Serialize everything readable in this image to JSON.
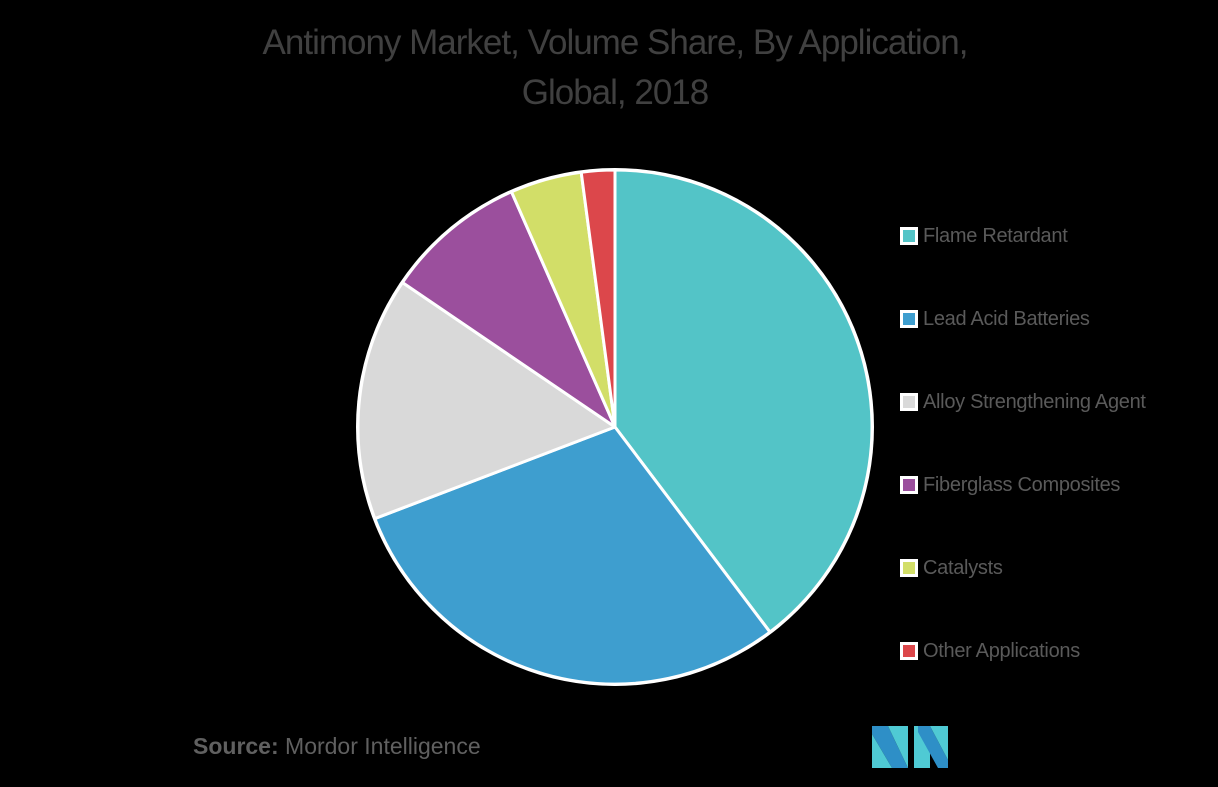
{
  "title": {
    "line1": "Antimony Market, Volume Share, By Application,",
    "line2": "Global, 2018"
  },
  "source": {
    "label": "Source:",
    "value": "Mordor Intelligence"
  },
  "logo": {
    "name": "mordor-intelligence-logo",
    "colors": [
      "#2e8fc7",
      "#4fcad4"
    ]
  },
  "chart_data": {
    "type": "pie",
    "title": "Antimony Market, Volume Share, By Application, Global, 2018",
    "start_angle_deg": 0,
    "direction": "clockwise",
    "categories": [
      "Flame Retardant",
      "Lead Acid Batteries",
      "Alloy Strengthening Agent",
      "Fiberglass Composites",
      "Catalysts",
      "Other Applications"
    ],
    "values": [
      39.7,
      29.5,
      15.3,
      8.9,
      4.5,
      2.1
    ],
    "colors": [
      "#53c4c7",
      "#3e9ecf",
      "#d9d9d9",
      "#9b4f9d",
      "#d2de68",
      "#dc474b"
    ],
    "unit": "%",
    "legend_position": "right",
    "data_labels": false
  },
  "legend": {
    "items": [
      {
        "label": "Flame Retardant",
        "color": "#53c4c7"
      },
      {
        "label": "Lead Acid Batteries",
        "color": "#3e9ecf"
      },
      {
        "label": "Alloy Strengthening Agent",
        "color": "#d9d9d9"
      },
      {
        "label": "Fiberglass Composites",
        "color": "#9b4f9d"
      },
      {
        "label": "Catalysts",
        "color": "#d2de68"
      },
      {
        "label": "Other Applications",
        "color": "#dc474b"
      }
    ]
  }
}
